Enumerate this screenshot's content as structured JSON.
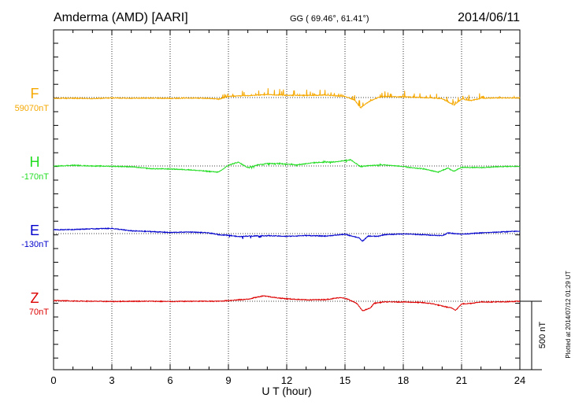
{
  "header": {
    "station": "Amderma (AMD)  [AARI]",
    "coords": "GG ( 69.46°,  61.41°)",
    "date": "2014/06/11"
  },
  "side_note": "Plotted at 2014/07/12 01:29 UT",
  "scale_label": "500 nT",
  "colors": {
    "F": "#f5a800",
    "H": "#22dd22",
    "E": "#0000cc",
    "Z": "#dd0000"
  },
  "chart_data": {
    "type": "line",
    "xlabel": "U T (hour)",
    "xlim": [
      0,
      24
    ],
    "xticks": [
      "0",
      "3",
      "6",
      "9",
      "12",
      "15",
      "18",
      "21",
      "24"
    ],
    "scale_nT": 500,
    "series": [
      {
        "name": "F",
        "baseline_label": "59070nT",
        "points": [
          [
            0,
            -6
          ],
          [
            1,
            -5
          ],
          [
            2,
            -8
          ],
          [
            3,
            -3
          ],
          [
            4,
            -5
          ],
          [
            5,
            -4
          ],
          [
            6,
            -6
          ],
          [
            7,
            -3
          ],
          [
            8,
            -6
          ],
          [
            8.5,
            -12
          ],
          [
            9,
            8
          ],
          [
            10,
            14
          ],
          [
            11,
            22
          ],
          [
            12,
            16
          ],
          [
            13,
            15
          ],
          [
            14,
            18
          ],
          [
            15,
            9
          ],
          [
            15.5,
            -20
          ],
          [
            15.8,
            -75
          ],
          [
            16.2,
            -32
          ],
          [
            16.7,
            0
          ],
          [
            17,
            8
          ],
          [
            18,
            5
          ],
          [
            19,
            0
          ],
          [
            20,
            -8
          ],
          [
            20.6,
            -56
          ],
          [
            21,
            -10
          ],
          [
            21.5,
            -22
          ],
          [
            22,
            -5
          ],
          [
            23,
            -3
          ],
          [
            24,
            -3
          ]
        ]
      },
      {
        "name": "H",
        "baseline_label": "-170nT",
        "points": [
          [
            0,
            -2
          ],
          [
            1,
            5
          ],
          [
            2,
            0
          ],
          [
            3,
            -2
          ],
          [
            4,
            -6
          ],
          [
            5,
            -20
          ],
          [
            6,
            -22
          ],
          [
            7,
            -28
          ],
          [
            8,
            -40
          ],
          [
            8.5,
            -45
          ],
          [
            9,
            5
          ],
          [
            9.5,
            28
          ],
          [
            10,
            -12
          ],
          [
            10.5,
            8
          ],
          [
            11,
            18
          ],
          [
            12,
            15
          ],
          [
            12.5,
            8
          ],
          [
            13.5,
            25
          ],
          [
            14.5,
            30
          ],
          [
            15.3,
            45
          ],
          [
            15.8,
            -5
          ],
          [
            16.2,
            2
          ],
          [
            17,
            8
          ],
          [
            18,
            -4
          ],
          [
            18.5,
            -15
          ],
          [
            19,
            -20
          ],
          [
            19.8,
            -45
          ],
          [
            20.3,
            -15
          ],
          [
            20.6,
            -40
          ],
          [
            21,
            -10
          ],
          [
            22,
            -12
          ],
          [
            23,
            -5
          ],
          [
            24,
            -2
          ]
        ]
      },
      {
        "name": "E",
        "baseline_label": "-130nT",
        "points": [
          [
            0,
            28
          ],
          [
            1,
            30
          ],
          [
            2,
            35
          ],
          [
            3,
            38
          ],
          [
            4,
            20
          ],
          [
            5,
            15
          ],
          [
            6,
            8
          ],
          [
            7,
            12
          ],
          [
            8,
            5
          ],
          [
            8.5,
            -8
          ],
          [
            9,
            -12
          ],
          [
            9.5,
            -22
          ],
          [
            10,
            -18
          ],
          [
            11,
            -15
          ],
          [
            12,
            -20
          ],
          [
            13,
            -14
          ],
          [
            14,
            -18
          ],
          [
            15,
            -5
          ],
          [
            15.7,
            -30
          ],
          [
            15.9,
            -55
          ],
          [
            16.2,
            -18
          ],
          [
            16.7,
            -20
          ],
          [
            17,
            -8
          ],
          [
            18,
            -2
          ],
          [
            19,
            -8
          ],
          [
            20,
            -15
          ],
          [
            20.3,
            5
          ],
          [
            21,
            -4
          ],
          [
            22,
            5
          ],
          [
            23,
            12
          ],
          [
            24,
            18
          ]
        ]
      },
      {
        "name": "Z",
        "baseline_label": "70nT",
        "points": [
          [
            0,
            5
          ],
          [
            1,
            2
          ],
          [
            2,
            0
          ],
          [
            3,
            -2
          ],
          [
            4,
            0
          ],
          [
            5,
            0
          ],
          [
            6,
            -2
          ],
          [
            7,
            0
          ],
          [
            8,
            0
          ],
          [
            8.5,
            0
          ],
          [
            9,
            5
          ],
          [
            10,
            15
          ],
          [
            10.8,
            40
          ],
          [
            11.5,
            25
          ],
          [
            12,
            18
          ],
          [
            13,
            10
          ],
          [
            14,
            12
          ],
          [
            14.8,
            28
          ],
          [
            15.2,
            12
          ],
          [
            15.6,
            -15
          ],
          [
            15.9,
            -70
          ],
          [
            16.3,
            -50
          ],
          [
            16.5,
            -15
          ],
          [
            17,
            -5
          ],
          [
            18,
            -5
          ],
          [
            19,
            -10
          ],
          [
            19.5,
            -18
          ],
          [
            20,
            -35
          ],
          [
            20.5,
            -50
          ],
          [
            20.7,
            -65
          ],
          [
            21,
            -20
          ],
          [
            21.5,
            -15
          ],
          [
            22,
            -5
          ],
          [
            23,
            -5
          ],
          [
            24,
            0
          ]
        ]
      }
    ]
  }
}
